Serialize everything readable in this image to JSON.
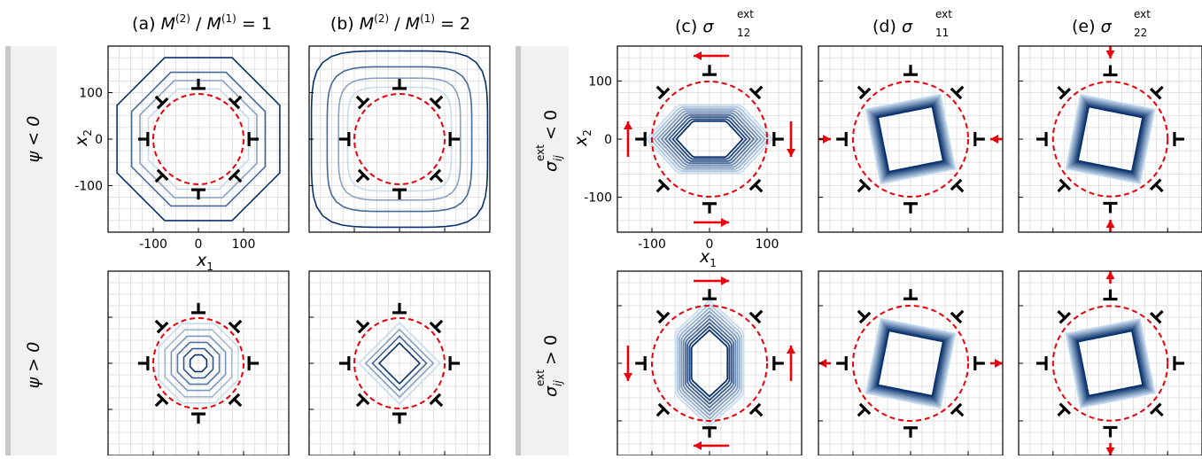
{
  "column_titles": [
    {
      "prefix": "(a) ",
      "main": "M",
      "sup1": "(2)",
      "mid": " / ",
      "main2": "M",
      "sup2": "(1)",
      "suffix": " = 1"
    },
    {
      "prefix": "(b) ",
      "main": "M",
      "sup1": "(2)",
      "mid": " / ",
      "main2": "M",
      "sup2": "(1)",
      "suffix": " = 2"
    },
    {
      "prefix": "(c) ",
      "sym": "σ",
      "sub": "12",
      "sup": "ext"
    },
    {
      "prefix": "(d) ",
      "sym": "σ",
      "sub": "11",
      "sup": "ext"
    },
    {
      "prefix": "(e) ",
      "sym": "σ",
      "sub": "22",
      "sup": "ext"
    }
  ],
  "row_labels_left": [
    "ψ < 0",
    "ψ > 0"
  ],
  "row_labels_right": [
    {
      "sym": "σ",
      "sub": "ij",
      "sup": "ext",
      "rel": " < 0"
    },
    {
      "sym": "σ",
      "sub": "ij",
      "sup": "ext",
      "rel": " > 0"
    }
  ],
  "axes": {
    "xlabel": "x",
    "xlabel_sub": "1",
    "ylabel": "x",
    "ylabel_sub": "2",
    "left_ticks": [
      "-100",
      "0",
      "100"
    ],
    "left_tick_values": [
      -100,
      0,
      100
    ],
    "right_ticks": [
      "-100",
      "0",
      "100"
    ],
    "right_tick_values": [
      -100,
      0,
      100
    ]
  },
  "chart_data": [
    {
      "panel": "a",
      "row": "psi<0",
      "type": "contour",
      "xlim": [
        -200,
        200
      ],
      "ylim": [
        -200,
        200
      ],
      "dislocation_ring_radius": 100,
      "contour_levels_radius": [
        120,
        140,
        160,
        195
      ],
      "contour_shape": "octagon",
      "grid": true
    },
    {
      "panel": "b",
      "row": "psi<0",
      "type": "contour",
      "xlim": [
        -200,
        200
      ],
      "ylim": [
        -200,
        200
      ],
      "dislocation_ring_radius": 100,
      "contour_levels_radius": [
        115,
        135,
        160,
        195
      ],
      "contour_shape": "square",
      "grid": true
    },
    {
      "panel": "a",
      "row": "psi>0",
      "type": "contour",
      "xlim": [
        -200,
        200
      ],
      "ylim": [
        -200,
        200
      ],
      "dislocation_ring_radius": 100,
      "contour_levels_radius": [
        20,
        35,
        50,
        65,
        80,
        95
      ],
      "contour_shape": "octagon",
      "grid": true
    },
    {
      "panel": "b",
      "row": "psi>0",
      "type": "contour",
      "xlim": [
        -200,
        200
      ],
      "ylim": [
        -200,
        200
      ],
      "dislocation_ring_radius": 100,
      "contour_levels_radius": [
        45,
        60,
        75,
        90
      ],
      "contour_shape": "diamond",
      "grid": true
    },
    {
      "panel": "c",
      "row": "sigma<0",
      "type": "contour",
      "xlim": [
        -160,
        160
      ],
      "ylim": [
        -160,
        160
      ],
      "dislocation_ring_radius": 100,
      "inner_shape": "hexagon-horizontal",
      "load": "shear",
      "grid": true
    },
    {
      "panel": "d",
      "row": "sigma<0",
      "type": "contour",
      "xlim": [
        -160,
        160
      ],
      "ylim": [
        -160,
        160
      ],
      "dislocation_ring_radius": 100,
      "inner_shape": "quad",
      "load": "compress-x",
      "grid": true
    },
    {
      "panel": "e",
      "row": "sigma<0",
      "type": "contour",
      "xlim": [
        -160,
        160
      ],
      "ylim": [
        -160,
        160
      ],
      "dislocation_ring_radius": 100,
      "inner_shape": "quad",
      "load": "compress-y",
      "grid": true
    },
    {
      "panel": "c",
      "row": "sigma>0",
      "type": "contour",
      "xlim": [
        -160,
        160
      ],
      "ylim": [
        -160,
        160
      ],
      "dislocation_ring_radius": 100,
      "inner_shape": "hexagon-vertical",
      "load": "shear-reversed",
      "grid": true
    },
    {
      "panel": "d",
      "row": "sigma>0",
      "type": "contour",
      "xlim": [
        -160,
        160
      ],
      "ylim": [
        -160,
        160
      ],
      "dislocation_ring_radius": 100,
      "inner_shape": "quad",
      "load": "tension-x",
      "grid": true
    },
    {
      "panel": "e",
      "row": "sigma>0",
      "type": "contour",
      "xlim": [
        -160,
        160
      ],
      "ylim": [
        -160,
        160
      ],
      "dislocation_ring_radius": 100,
      "inner_shape": "quad",
      "load": "tension-y",
      "grid": true
    }
  ],
  "colors": {
    "ring": "#e8000b",
    "arrow": "#e8000b",
    "dislocation": "#000000",
    "grid": "#d9d9d9",
    "contour_light": "#c6dbef",
    "contour_dark": "#08306b",
    "band": "#c8c8c8"
  }
}
